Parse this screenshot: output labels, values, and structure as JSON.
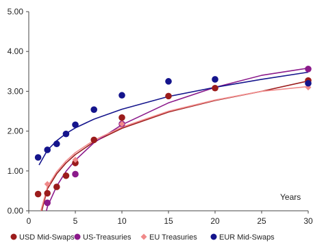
{
  "chart_data": {
    "type": "scatter",
    "xlabel": "Years",
    "ylabel": "",
    "xlim": [
      0,
      30
    ],
    "ylim": [
      0,
      5
    ],
    "xticks": [
      0,
      5,
      10,
      15,
      20,
      25,
      30
    ],
    "yticks": [
      0,
      1,
      2,
      3,
      4,
      5
    ],
    "xtick_labels": [
      "0",
      "5",
      "10",
      "15",
      "20",
      "25",
      "30"
    ],
    "ytick_labels": [
      "0.00",
      "1.00",
      "2.00",
      "3.00",
      "4.00",
      "5.00"
    ],
    "grid": false,
    "legend_position": "bottom",
    "series": [
      {
        "name": "USD Mid-Swaps",
        "color": "#9b1c1c",
        "marker": "circle",
        "x": [
          1,
          2,
          3,
          4,
          5,
          7,
          10,
          15,
          20,
          30
        ],
        "y": [
          0.42,
          0.44,
          0.6,
          0.88,
          1.2,
          1.78,
          2.34,
          2.88,
          3.08,
          3.27
        ],
        "trend_x": [
          1.4,
          2,
          3,
          4,
          5,
          7,
          10,
          15,
          20,
          25,
          30
        ],
        "trend_y": [
          0.0,
          0.55,
          0.93,
          1.2,
          1.41,
          1.73,
          2.07,
          2.48,
          2.77,
          3.0,
          3.26
        ]
      },
      {
        "name": "US-Treasuries",
        "color": "#8b1a8b",
        "marker": "circle",
        "x": [
          2,
          5,
          10,
          30
        ],
        "y": [
          0.2,
          0.92,
          2.18,
          3.56
        ],
        "trend_x": [
          1.9,
          2,
          3,
          4,
          5,
          7,
          10,
          15,
          20,
          25,
          30
        ],
        "trend_y": [
          0.0,
          0.1,
          0.62,
          0.99,
          1.27,
          1.71,
          2.16,
          2.71,
          3.1,
          3.4,
          3.58
        ]
      },
      {
        "name": "EU Treasuries",
        "color": "#f08a8a",
        "marker": "diamond",
        "x": [
          2,
          5,
          10,
          30
        ],
        "y": [
          0.67,
          1.28,
          2.18,
          3.1
        ],
        "trend_x": [
          1.3,
          2,
          3,
          4,
          5,
          7,
          10,
          15,
          20,
          25,
          30
        ],
        "trend_y": [
          0.0,
          0.6,
          0.98,
          1.25,
          1.46,
          1.77,
          2.1,
          2.5,
          2.78,
          3.0,
          3.12
        ]
      },
      {
        "name": "EUR Mid-Swaps",
        "color": "#14148c",
        "marker": "circle",
        "x": [
          1,
          2,
          3,
          4,
          5,
          7,
          10,
          15,
          20,
          30
        ],
        "y": [
          1.34,
          1.53,
          1.68,
          1.93,
          2.16,
          2.54,
          2.9,
          3.25,
          3.3,
          3.2
        ],
        "trend_x": [
          1.1,
          2,
          3,
          4,
          5,
          7,
          10,
          15,
          20,
          25,
          30
        ],
        "trend_y": [
          1.15,
          1.52,
          1.76,
          1.94,
          2.08,
          2.3,
          2.55,
          2.87,
          3.1,
          3.3,
          3.48
        ]
      }
    ]
  }
}
